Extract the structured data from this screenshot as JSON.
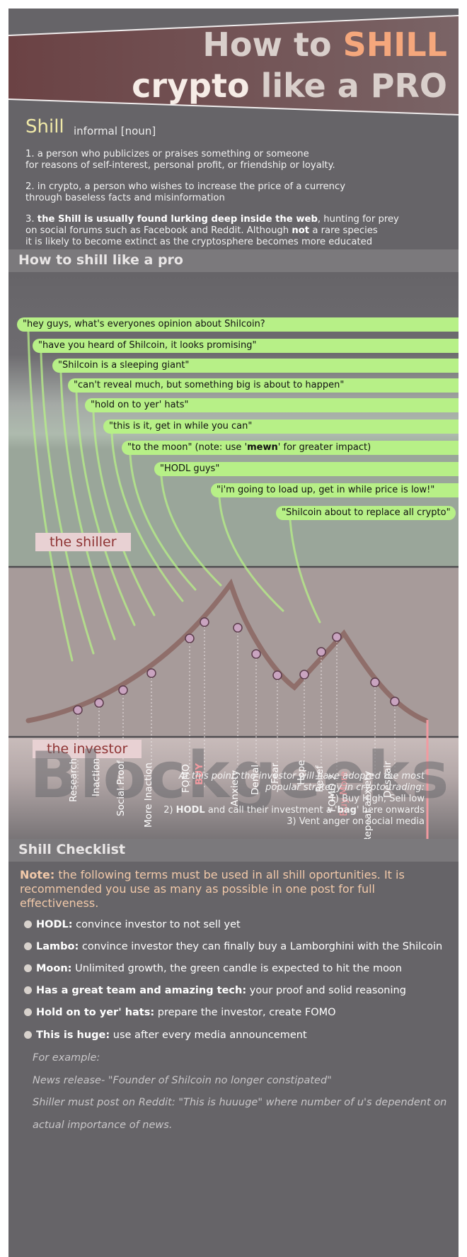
{
  "header": {
    "line1_pre": "How to ",
    "line1_highlight": "SHILL",
    "line2_word1": "crypto",
    "line2_rest": " like a PRO"
  },
  "definition": {
    "word": "Shill",
    "kind": "informal [noun]",
    "def1_line1": "1. a person who publicizes or praises something or someone",
    "def1_line2": "for reasons of self-interest, personal profit, or friendship or loyalty.",
    "def2_line1": "2. in crypto, a person who wishes to increase the price of a currency",
    "def2_line2": "through baseless facts and misinformation",
    "def3_num": "3. ",
    "def3_bold": "the Shill is usually found lurking deep inside the web",
    "def3_rest1": ", hunting for prey",
    "def3_line2_pre": "on social forums such as Facebook and Reddit. Although ",
    "def3_line2_bold": "not",
    "def3_line2_post": " a rare species",
    "def3_line3": "it is likely to become extinct as the cryptosphere becomes more educated"
  },
  "section1": {
    "title": "How to shill like a pro"
  },
  "quotes": [
    "\"hey guys, what's everyones opinion about Shilcoin?",
    "\"have you heard of Shilcoin, it looks promising\"",
    "\"Shilcoin is a sleeping giant\"",
    "\"can't reveal much, but something big is about to happen\"",
    "\"hold on to yer' hats\"",
    "\"this is it, get in while you can\"",
    "\"to the moon\" (note: use '",
    "\"HODL guys\"",
    "\"i'm going to load up, get in while price is low!\"",
    "\"Shilcoin about to replace all crypto\""
  ],
  "quote7_bold": "mewn",
  "quote7_post": "' for greater impact)",
  "labels": {
    "shiller": "the shiller",
    "investor": "the investor"
  },
  "stages": [
    "Research",
    "Inaction",
    "Social Proof",
    "More Inaction",
    "FOMO",
    "BUY",
    "Anxiety",
    "Denial",
    "Fear",
    "Hope",
    "Relief",
    "FOMO 2",
    "Buy More",
    "Repeat anxiety",
    "Despair"
  ],
  "watermark": "Blockgeeks",
  "note": {
    "intro1": "At this point, the investor will have adopted the most",
    "intro2": "popular strategy in crypto trading:",
    "step1": "1) Buy High, Sell low",
    "step2_pre": "2) ",
    "step2_bold": "HODL",
    "step2_mid": " and call their investment a '",
    "step2_bag": "bag",
    "step2_post": "' here onwards",
    "step3": "3) Vent anger on social media"
  },
  "section2": {
    "title": "Shill Checklist"
  },
  "checklist_note": {
    "bold": "Note:",
    "text": " the following terms must be used in all shill oportunities. It is recommended you use as many as possible in one post for full effectiveness."
  },
  "checklist": [
    {
      "term": "HODL:",
      "desc": " convince investor to not sell yet"
    },
    {
      "term": "Lambo:",
      "desc": " convince investor they can finally buy a Lamborghini with the Shilcoin"
    },
    {
      "term": "Moon:",
      "desc": " Unlimited growth, the green candle is expected to hit the moon"
    },
    {
      "term": "Has a great team and amazing tech:",
      "desc": " your proof and solid reasoning"
    },
    {
      "term": "Hold on to yer' hats:",
      "desc": " prepare the investor, create FOMO"
    },
    {
      "term": "This is huge:",
      "desc": " use after every media announcement"
    }
  ],
  "example": {
    "label": "For example:",
    "news": "News release-   \"Founder of Shilcoin no longer constipated\"",
    "reddit1": "Shiller must post on Reddit: \"This is huuuge\" where number of u's dependent on",
    "reddit2": "actual importance of news."
  },
  "colors": {
    "background": "#666468",
    "header_band": "#6e4e4f",
    "quote_green": "#b7f087",
    "accent_orange": "#f5a77c",
    "investor_curve": "#8f6e6a",
    "pink": "#f29aa0"
  }
}
